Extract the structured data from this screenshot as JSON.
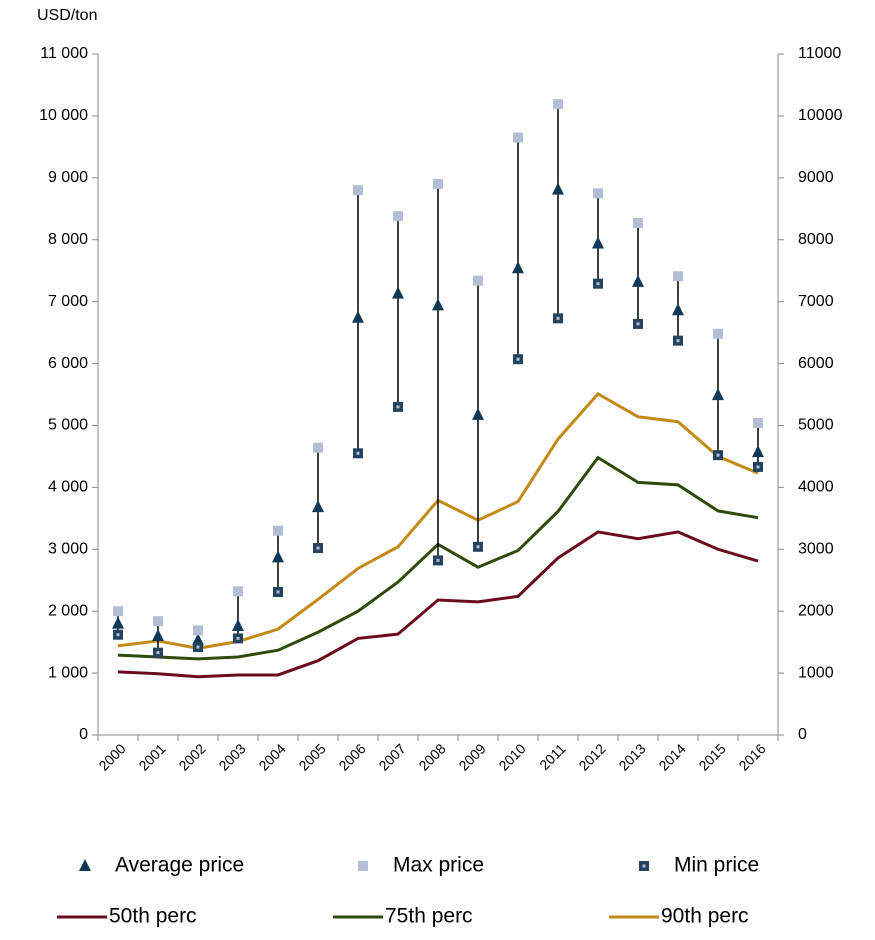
{
  "chart_data": {
    "type": "line",
    "y_label": "USD/ton",
    "categories": [
      "2000",
      "2001",
      "2002",
      "2003",
      "2004",
      "2005",
      "2006",
      "2007",
      "2008",
      "2009",
      "2010",
      "2011",
      "2012",
      "2013",
      "2014",
      "2015",
      "2016"
    ],
    "series": [
      {
        "name": "Average price",
        "mode": "triangle",
        "color": "#0f3957",
        "values": [
          1800,
          1600,
          1530,
          1760,
          2870,
          3680,
          6740,
          7130,
          6940,
          5170,
          7540,
          8810,
          7940,
          7320,
          6860,
          5490,
          4570
        ]
      },
      {
        "name": "Max price",
        "mode": "square",
        "color": "#b3bed6",
        "values": [
          2000,
          1840,
          1690,
          2320,
          3300,
          4640,
          8800,
          8380,
          8900,
          7340,
          9650,
          10190,
          8750,
          8270,
          7410,
          6480,
          5040
        ]
      },
      {
        "name": "Min price",
        "mode": "square-dot",
        "color": "#23435f",
        "values": [
          1620,
          1330,
          1420,
          1560,
          2310,
          3020,
          4550,
          5300,
          2820,
          3040,
          6070,
          6730,
          7290,
          6640,
          6370,
          4520,
          4330
        ]
      },
      {
        "name": "50th perc",
        "mode": "line",
        "color": "#6a0c1e",
        "values": [
          1020,
          990,
          940,
          970,
          970,
          1200,
          1560,
          1630,
          2180,
          2150,
          2240,
          2860,
          3280,
          3170,
          3280,
          3000,
          2810
        ]
      },
      {
        "name": "75th perc",
        "mode": "line",
        "color": "#2f4a0b",
        "values": [
          1290,
          1260,
          1230,
          1260,
          1370,
          1660,
          2000,
          2470,
          3080,
          2710,
          2980,
          3610,
          4480,
          4080,
          4040,
          3620,
          3510
        ]
      },
      {
        "name": "90th perc",
        "mode": "line",
        "color": "#c38a15",
        "values": [
          1440,
          1520,
          1400,
          1510,
          1710,
          2190,
          2690,
          3040,
          3790,
          3470,
          3770,
          4780,
          5510,
          5140,
          5060,
          4500,
          4230
        ]
      }
    ],
    "ylim": [
      0,
      11000
    ],
    "yticks": [
      0,
      {
        "value": 1000,
        "label": "1 000"
      },
      {
        "value": 2000,
        "label": "2 000"
      },
      {
        "value": 3000,
        "label": "3 000"
      },
      {
        "value": 4000,
        "label": "4 000"
      },
      {
        "value": 5000,
        "label": "5 000"
      },
      {
        "value": 6000,
        "label": "6 000"
      },
      {
        "value": 7000,
        "label": "7 000"
      },
      {
        "value": 8000,
        "label": "8 000"
      },
      {
        "value": 9000,
        "label": "9 000"
      },
      {
        "value": 10000,
        "label": "10 000"
      },
      {
        "value": 11000,
        "label": "11 000"
      }
    ],
    "y2lim": [
      0,
      11000
    ],
    "y2ticks": [
      0,
      1000,
      2000,
      3000,
      4000,
      5000,
      6000,
      7000,
      8000,
      9000,
      10000,
      11000
    ],
    "range_color": "#000000"
  }
}
